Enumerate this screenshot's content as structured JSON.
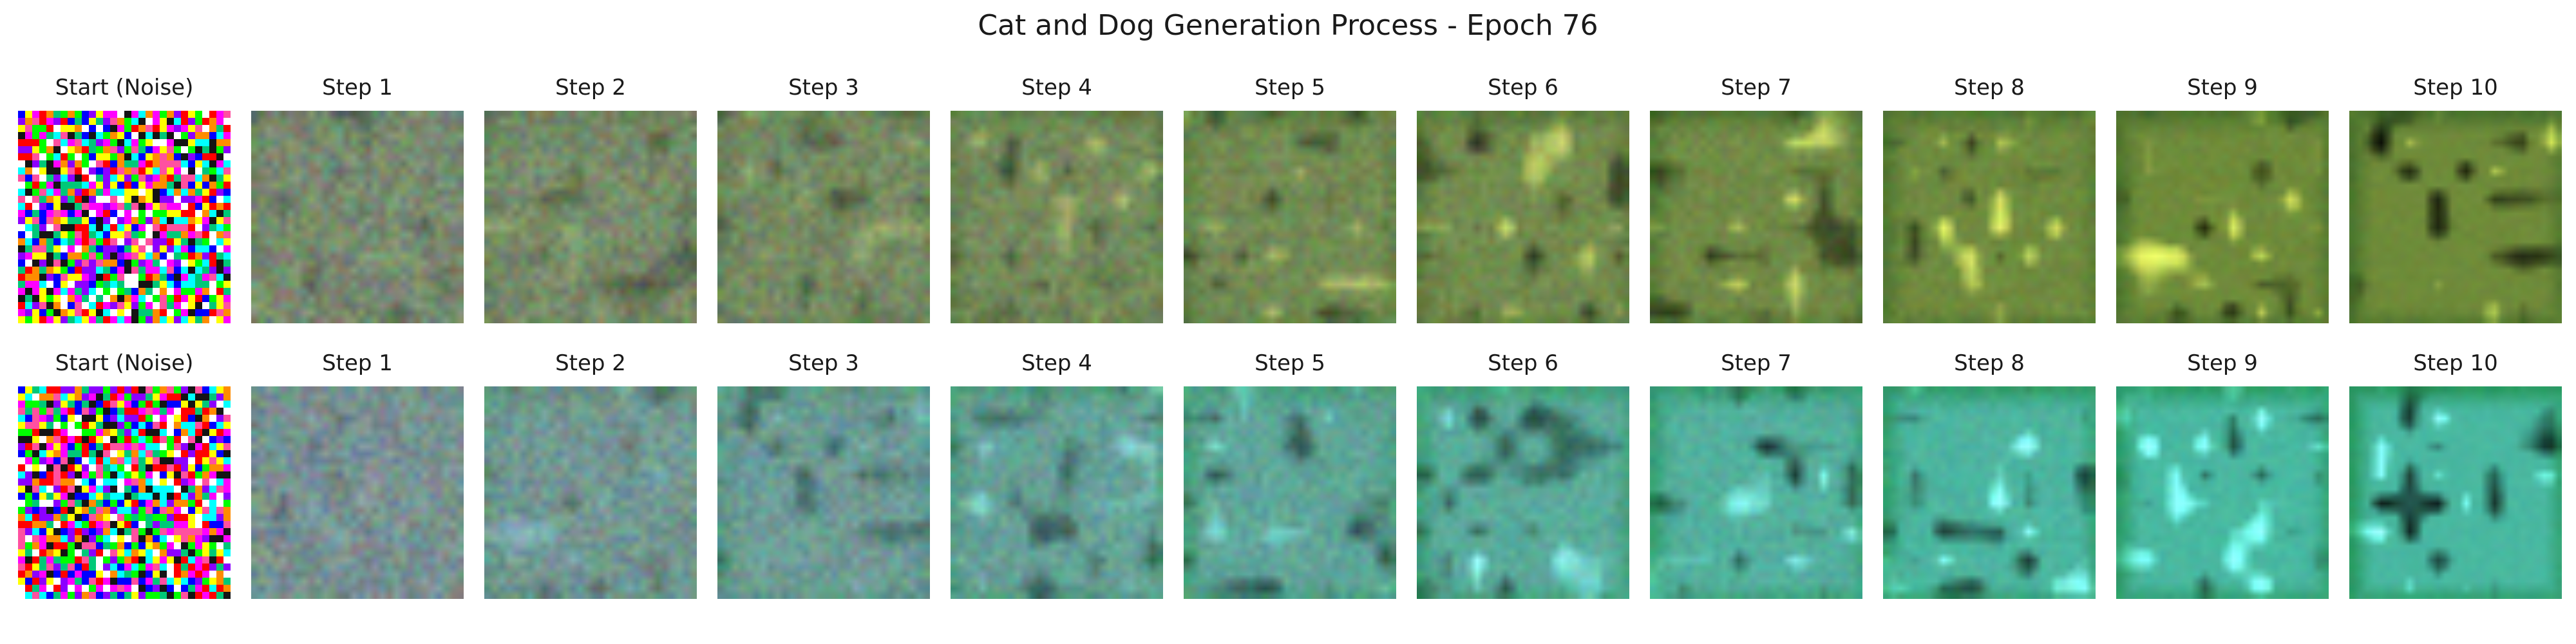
{
  "figure": {
    "title": "Cat and Dog Generation Process - Epoch 76"
  },
  "rows": [
    {
      "panels": [
        {
          "title": "Start (Noise)",
          "kind": "noise",
          "seed": 11
        },
        {
          "title": "Step 1",
          "kind": "blend",
          "seed": 101
        },
        {
          "title": "Step 2",
          "kind": "blend",
          "seed": 102
        },
        {
          "title": "Step 3",
          "kind": "blend",
          "seed": 103
        },
        {
          "title": "Step 4",
          "kind": "blend",
          "seed": 104
        },
        {
          "title": "Step 5",
          "kind": "blend",
          "seed": 105
        },
        {
          "title": "Step 6",
          "kind": "blend",
          "seed": 106
        },
        {
          "title": "Step 7",
          "kind": "blend",
          "seed": 107
        },
        {
          "title": "Step 8",
          "kind": "blend",
          "seed": 108
        },
        {
          "title": "Step 9",
          "kind": "blend",
          "seed": 109
        },
        {
          "title": "Step 10",
          "kind": "blend",
          "seed": 110
        }
      ],
      "base_color": "#7a8a78",
      "target_color": "#6f8b3a",
      "highlight_color": "#d8c24a",
      "edge_color": "#3f6b2a"
    },
    {
      "panels": [
        {
          "title": "Start (Noise)",
          "kind": "noise",
          "seed": 22
        },
        {
          "title": "Step 1",
          "kind": "blend",
          "seed": 201
        },
        {
          "title": "Step 2",
          "kind": "blend",
          "seed": 202
        },
        {
          "title": "Step 3",
          "kind": "blend",
          "seed": 203
        },
        {
          "title": "Step 4",
          "kind": "blend",
          "seed": 204
        },
        {
          "title": "Step 5",
          "kind": "blend",
          "seed": 205
        },
        {
          "title": "Step 6",
          "kind": "blend",
          "seed": 206
        },
        {
          "title": "Step 7",
          "kind": "blend",
          "seed": 207
        },
        {
          "title": "Step 8",
          "kind": "blend",
          "seed": 208
        },
        {
          "title": "Step 9",
          "kind": "blend",
          "seed": 209
        },
        {
          "title": "Step 10",
          "kind": "blend",
          "seed": 210
        }
      ],
      "base_color": "#7f8c8f",
      "target_color": "#49b8a1",
      "highlight_color": "#8fd6f0",
      "edge_color": "#1f8f4b"
    }
  ]
}
